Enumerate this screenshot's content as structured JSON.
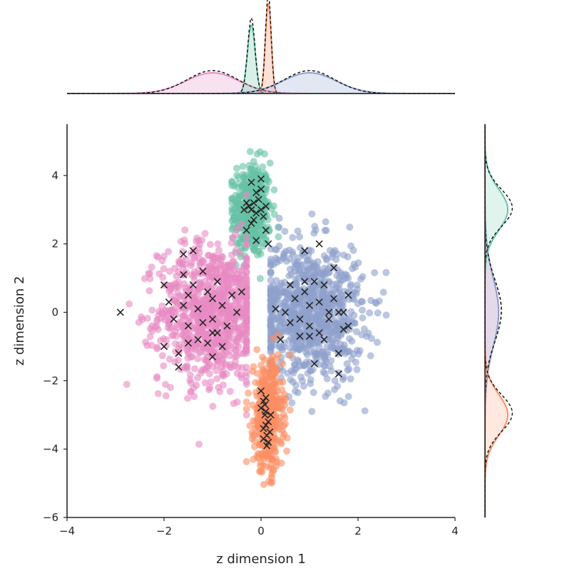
{
  "chart_data": {
    "type": "scatter",
    "xlabel": "z dimension 1",
    "ylabel": "z dimension 2",
    "xlim": [
      -4,
      4
    ],
    "ylim": [
      -6,
      5.5
    ],
    "xticks": [
      -4,
      -2,
      0,
      2,
      4
    ],
    "yticks": [
      -6,
      -4,
      -2,
      0,
      2,
      4
    ],
    "xtick_labels": [
      "−4",
      "−2",
      "0",
      "2",
      "4"
    ],
    "ytick_labels": [
      "−6",
      "−4",
      "−2",
      "0",
      "2",
      "4"
    ],
    "grid": false,
    "legend": "none",
    "marginal_plots": [
      "top: x density",
      "right: y density"
    ],
    "colors": {
      "pink": "#e78ac3",
      "blue": "#8da0cb",
      "green": "#66c2a5",
      "orange": "#fc8d62",
      "markers": "#262626",
      "axes": "#262626"
    },
    "series": [
      {
        "color_key": "pink",
        "marker": "o",
        "center": [
          -1.0,
          0.0
        ],
        "spread": [
          0.55,
          1.0
        ],
        "approx_range_x": [
          -3.5,
          -0.3
        ],
        "approx_range_y": [
          -4.1,
          3.5
        ]
      },
      {
        "color_key": "blue",
        "marker": "o",
        "center": [
          1.0,
          0.0
        ],
        "spread": [
          0.55,
          1.0
        ],
        "approx_range_x": [
          0.2,
          3.5
        ],
        "approx_range_y": [
          -4.1,
          3.6
        ]
      },
      {
        "color_key": "green",
        "marker": "o",
        "center": [
          -0.2,
          3.0
        ],
        "spread": [
          0.2,
          0.7
        ],
        "approx_range_x": [
          -0.6,
          0.4
        ],
        "approx_range_y": [
          0.5,
          4.7
        ]
      },
      {
        "color_key": "orange",
        "marker": "o",
        "center": [
          0.15,
          -3.0
        ],
        "spread": [
          0.15,
          0.8
        ],
        "approx_range_x": [
          -0.3,
          0.6
        ],
        "approx_range_y": [
          -5.1,
          -0.2
        ]
      },
      {
        "color_key": "markers",
        "marker": "x",
        "points": [
          [
            -2.9,
            0.0
          ],
          [
            -2.0,
            0.8
          ],
          [
            -2.0,
            -1.0
          ],
          [
            -1.9,
            0.3
          ],
          [
            -1.8,
            -0.2
          ],
          [
            -1.7,
            -1.2
          ],
          [
            -1.7,
            -1.6
          ],
          [
            -1.6,
            1.1
          ],
          [
            -1.6,
            0.2
          ],
          [
            -1.5,
            0.5
          ],
          [
            -1.5,
            -0.4
          ],
          [
            -1.4,
            1.8
          ],
          [
            -1.4,
            0.8
          ],
          [
            -1.3,
            0.1
          ],
          [
            -1.3,
            -0.8
          ],
          [
            -1.2,
            1.2
          ],
          [
            -1.1,
            0.6
          ],
          [
            -1.0,
            -0.2
          ],
          [
            -1.0,
            -1.3
          ],
          [
            -0.9,
            0.9
          ],
          [
            -0.9,
            -0.6
          ],
          [
            -0.8,
            0.2
          ],
          [
            -0.8,
            -1.0
          ],
          [
            -0.7,
            -0.4
          ],
          [
            -0.6,
            0.5
          ],
          [
            -0.5,
            0.0
          ],
          [
            -0.4,
            0.6
          ],
          [
            -1.1,
            -0.9
          ],
          [
            -1.2,
            -0.3
          ],
          [
            -1.5,
            -0.9
          ],
          [
            -1.0,
            0.4
          ],
          [
            -1.6,
            1.7
          ],
          [
            -1.0,
            -0.6
          ],
          [
            -0.3,
            2.4
          ],
          [
            -0.2,
            3.0
          ],
          [
            -0.2,
            3.8
          ],
          [
            -0.1,
            3.5
          ],
          [
            -0.1,
            2.1
          ],
          [
            -0.15,
            3.2
          ],
          [
            -0.25,
            3.1
          ],
          [
            0.0,
            3.6
          ],
          [
            0.05,
            2.8
          ],
          [
            0.1,
            2.4
          ],
          [
            0.15,
            2.0
          ],
          [
            -0.05,
            3.3
          ],
          [
            -0.3,
            3.2
          ],
          [
            -0.2,
            2.6
          ],
          [
            0.0,
            3.0
          ],
          [
            -0.1,
            2.9
          ],
          [
            0.0,
            3.9
          ],
          [
            -0.35,
            3.0
          ],
          [
            0.1,
            3.1
          ],
          [
            -0.15,
            2.7
          ],
          [
            0.0,
            -2.3
          ],
          [
            0.05,
            -2.6
          ],
          [
            0.08,
            -3.0
          ],
          [
            0.1,
            -3.3
          ],
          [
            0.12,
            -3.6
          ],
          [
            0.15,
            -3.8
          ],
          [
            0.1,
            -2.9
          ],
          [
            0.05,
            -3.4
          ],
          [
            0.15,
            -3.2
          ],
          [
            0.1,
            -2.5
          ],
          [
            0.05,
            -3.7
          ],
          [
            0.18,
            -3.5
          ],
          [
            0.0,
            -2.8
          ],
          [
            0.12,
            -3.9
          ],
          [
            0.08,
            -2.7
          ],
          [
            0.2,
            -3.0
          ],
          [
            0.3,
            0.1
          ],
          [
            0.5,
            0.0
          ],
          [
            0.6,
            -0.3
          ],
          [
            0.7,
            0.4
          ],
          [
            0.8,
            -0.2
          ],
          [
            0.8,
            -0.7
          ],
          [
            0.9,
            0.6
          ],
          [
            0.9,
            1.8
          ],
          [
            1.0,
            0.2
          ],
          [
            1.0,
            -0.4
          ],
          [
            1.1,
            0.9
          ],
          [
            1.1,
            -1.5
          ],
          [
            1.2,
            0.3
          ],
          [
            1.2,
            -0.6
          ],
          [
            1.3,
            0.8
          ],
          [
            1.3,
            -0.8
          ],
          [
            1.4,
            0.0
          ],
          [
            1.4,
            -0.2
          ],
          [
            1.5,
            0.4
          ],
          [
            1.5,
            1.3
          ],
          [
            1.6,
            -1.2
          ],
          [
            1.6,
            -1.8
          ],
          [
            1.7,
            0.0
          ],
          [
            1.8,
            0.5
          ],
          [
            1.8,
            -0.4
          ],
          [
            1.7,
            -0.5
          ],
          [
            0.4,
            -0.8
          ],
          [
            0.6,
            0.8
          ],
          [
            1.0,
            -0.7
          ],
          [
            1.2,
            2.0
          ],
          [
            0.9,
            0.9
          ],
          [
            1.6,
            0.0
          ]
        ]
      }
    ]
  }
}
